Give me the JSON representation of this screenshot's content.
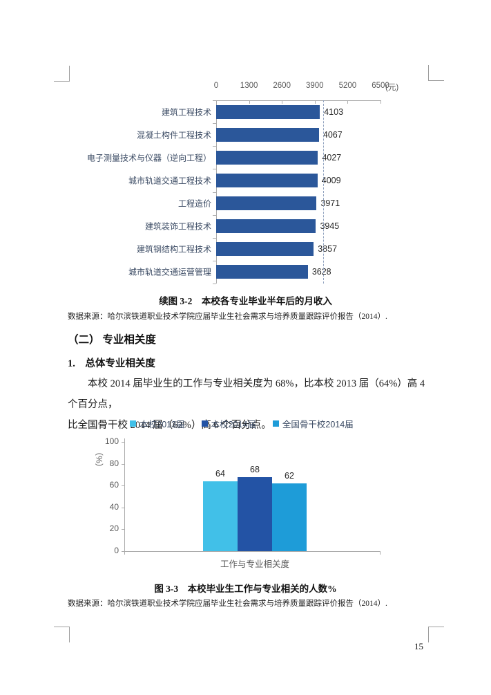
{
  "page": {
    "number": "15"
  },
  "figure1": {
    "caption": "续图 3-2　本校各专业毕业半年后的月收入",
    "source": "数据来源：哈尔滨铁道职业技术学院应届毕业生社会需求与培养质量跟踪评价报告（2014）."
  },
  "section": {
    "heading": "（二） 专业相关度",
    "subheading": "1.　总体专业相关度",
    "paragraph_line1": "本校 2014 届毕业生的工作与专业相关度为 68%，比本校 2013 届（64%）高 4 个百分点，",
    "paragraph_line2": "比全国骨干校 2014 届（62%）高 6 个百分点。"
  },
  "figure2": {
    "caption": "图 3-3　本校毕业生工作与专业相关的人数%",
    "source": "数据来源：哈尔滨铁道职业技术学院应届毕业生社会需求与培养质量跟踪评价报告（2014）."
  },
  "chart_data": [
    {
      "type": "bar",
      "orientation": "horizontal",
      "title": "续图 3-2 本校各专业毕业半年后的月收入",
      "unit_label": "(元)",
      "categories": [
        "建筑工程技术",
        "混凝土构件工程技术",
        "电子测量技术与仪器（逆向工程）",
        "城市轨道交通工程技术",
        "工程造价",
        "建筑装饰工程技术",
        "建筑钢结构工程技术",
        "城市轨道交通运营管理"
      ],
      "values": [
        4103,
        4067,
        4027,
        4009,
        3971,
        3945,
        3857,
        3628
      ],
      "xlim": [
        0,
        6500
      ],
      "x_ticks": [
        0,
        1300,
        2600,
        3900,
        5200,
        6500
      ],
      "bar_color": "#2b579a",
      "reference_line": {
        "value": 4233,
        "style": "dashed",
        "color": "#8ea0be"
      },
      "legend_position": "none",
      "grid": false
    },
    {
      "type": "bar",
      "orientation": "vertical",
      "title": "图 3-3 本校毕业生工作与专业相关的人数%",
      "ylabel": "（%）",
      "categories": [
        "工作与专业相关度"
      ],
      "series": [
        {
          "name": "本校2013届",
          "color": "#41c0e8",
          "values": [
            64
          ]
        },
        {
          "name": "本校2014届",
          "color": "#2353a5",
          "values": [
            68
          ]
        },
        {
          "name": "全国骨干校2014届",
          "color": "#1e9cd8",
          "values": [
            62
          ]
        }
      ],
      "ylim": [
        0,
        100
      ],
      "y_ticks": [
        0,
        20,
        40,
        60,
        80,
        100
      ],
      "legend_position": "top",
      "grid": false
    }
  ]
}
